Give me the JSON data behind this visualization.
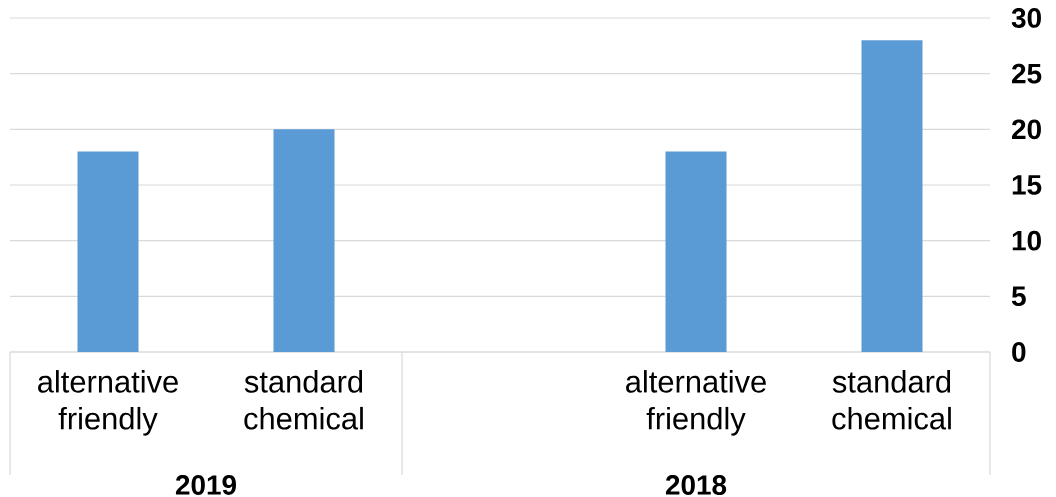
{
  "chart_data": {
    "type": "bar",
    "categories": [
      "alternative friendly",
      "standard chemical",
      null,
      "alternative friendly",
      "standard chemical"
    ],
    "values": [
      18,
      20,
      null,
      18,
      28
    ],
    "color": "#5b9bd5",
    "ylim": [
      0,
      30
    ],
    "yticks": [
      0,
      5,
      10,
      15,
      20,
      25,
      30
    ],
    "grid": "y",
    "annotations": [
      "2019",
      "2018"
    ]
  }
}
